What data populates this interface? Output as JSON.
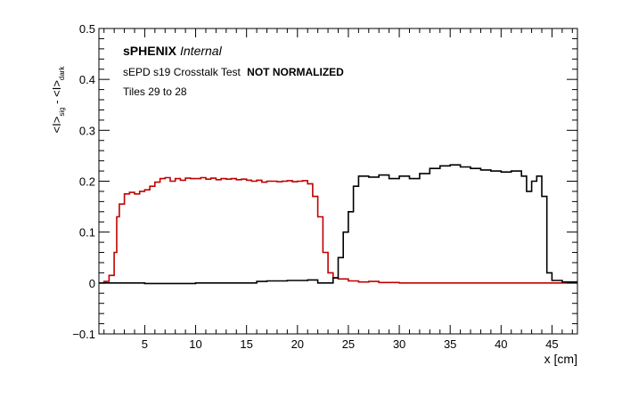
{
  "chart_data": {
    "type": "line",
    "xlabel": "x [cm]",
    "ylabel_parts": {
      "sig_sym": "<I>",
      "sig_sub": "sig",
      "minus": " - ",
      "dark_sym": "<I>",
      "dark_sub": "dark"
    },
    "xlim": [
      0.5,
      47.5
    ],
    "ylim": [
      -0.1,
      0.5
    ],
    "xticks": [
      5,
      10,
      15,
      20,
      25,
      30,
      35,
      40,
      45
    ],
    "yticks": [
      -0.1,
      0,
      0.1,
      0.2,
      0.3,
      0.4,
      0.5
    ],
    "ytick_labels": [
      "−0.1",
      "0",
      "0.1",
      "0.2",
      "0.3",
      "0.4",
      "0.5"
    ],
    "annotations": {
      "experiment": "sPHENIX",
      "status": "Internal",
      "test_prefix": "sEPD s19 Crosstalk Test",
      "test_bold": "NOT NORMALIZED",
      "tiles": "Tiles 29 to 28"
    },
    "series": [
      {
        "color": "#c00000",
        "x": [
          0.5,
          1.0,
          1.5,
          2.0,
          2.25,
          2.5,
          3.0,
          3.5,
          4.0,
          4.5,
          5.0,
          5.5,
          6.0,
          6.5,
          7.0,
          7.5,
          8.0,
          8.5,
          9.0,
          9.5,
          10.0,
          10.5,
          11.0,
          11.5,
          12.0,
          12.5,
          13.0,
          13.5,
          14.0,
          14.5,
          15.0,
          15.5,
          16.0,
          16.5,
          17.0,
          17.5,
          18.0,
          18.5,
          19.0,
          19.5,
          20.0,
          20.5,
          21.0,
          21.5,
          22.0,
          22.5,
          23.0,
          23.5,
          24.0,
          25.0,
          26.0,
          27.0,
          28.0,
          30.0,
          35.0,
          40.0,
          45.0,
          47.5
        ],
        "y": [
          0.0,
          0.003,
          0.015,
          0.06,
          0.13,
          0.155,
          0.175,
          0.178,
          0.175,
          0.18,
          0.183,
          0.19,
          0.198,
          0.205,
          0.207,
          0.2,
          0.205,
          0.202,
          0.206,
          0.205,
          0.205,
          0.207,
          0.204,
          0.206,
          0.203,
          0.205,
          0.204,
          0.205,
          0.203,
          0.204,
          0.202,
          0.2,
          0.202,
          0.198,
          0.2,
          0.2,
          0.199,
          0.2,
          0.201,
          0.199,
          0.2,
          0.201,
          0.195,
          0.17,
          0.13,
          0.06,
          0.02,
          0.01,
          0.008,
          0.004,
          0.002,
          0.003,
          0.001,
          0.0,
          0.0,
          0.0,
          0.0,
          0.0
        ]
      },
      {
        "color": "#000000",
        "x": [
          0.5,
          5.0,
          10.0,
          15.0,
          16.0,
          17.0,
          18.0,
          19.0,
          20.0,
          21.0,
          22.0,
          23.0,
          23.5,
          24.0,
          24.5,
          25.0,
          25.5,
          26.0,
          27.0,
          28.0,
          29.0,
          30.0,
          31.0,
          32.0,
          33.0,
          34.0,
          35.0,
          36.0,
          37.0,
          38.0,
          39.0,
          40.0,
          41.0,
          42.0,
          42.5,
          43.0,
          43.5,
          44.0,
          44.5,
          45.0,
          46.0,
          47.5
        ],
        "y": [
          0.0,
          -0.001,
          0.0,
          0.0,
          0.003,
          0.004,
          0.004,
          0.005,
          0.005,
          0.006,
          0.0,
          0.0,
          0.01,
          0.05,
          0.1,
          0.14,
          0.19,
          0.21,
          0.208,
          0.212,
          0.205,
          0.21,
          0.205,
          0.215,
          0.225,
          0.23,
          0.232,
          0.228,
          0.225,
          0.222,
          0.22,
          0.218,
          0.22,
          0.21,
          0.18,
          0.2,
          0.21,
          0.17,
          0.02,
          0.005,
          0.002,
          0.002
        ]
      }
    ]
  }
}
